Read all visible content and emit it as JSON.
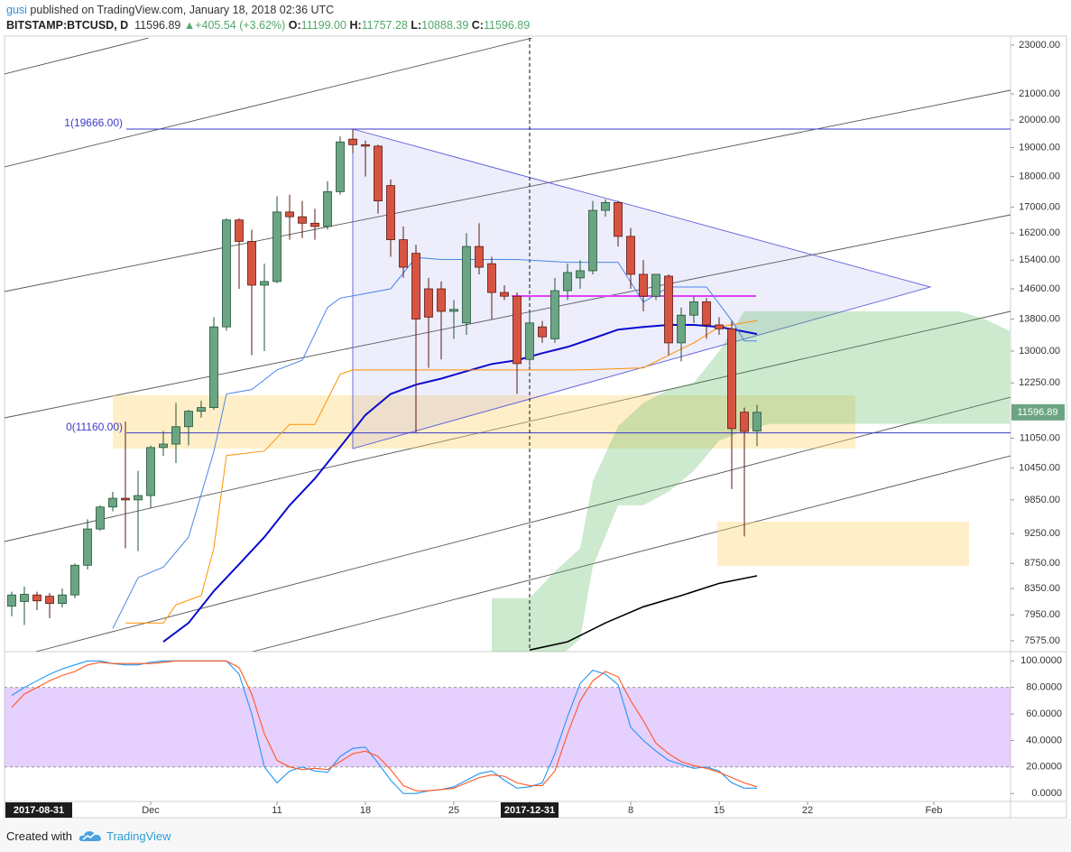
{
  "header": {
    "author": "gusi",
    "published": "published on TradingView.com, January 18, 2018 02:36 UTC"
  },
  "chart_data": [
    {
      "type": "candlestick",
      "symbol": "BITSTAMP:BTCUSD, D",
      "legend": {
        "last": "11596.89",
        "change": "+405.54 (+3.62%)",
        "change_color": "#53a86b",
        "o_label": "O:",
        "o": "11199.00",
        "h_label": "H:",
        "h": "11757.28",
        "l_label": "L:",
        "l": "10888.39",
        "c_label": "C:",
        "c": "11596.89"
      },
      "x": [
        "2017-11-20",
        "2017-11-21",
        "2017-11-22",
        "2017-11-23",
        "2017-11-24",
        "2017-11-25",
        "2017-11-26",
        "2017-11-27",
        "2017-11-28",
        "2017-11-29",
        "2017-11-30",
        "2017-12-01",
        "2017-12-02",
        "2017-12-03",
        "2017-12-04",
        "2017-12-05",
        "2017-12-06",
        "2017-12-07",
        "2017-12-08",
        "2017-12-09",
        "2017-12-10",
        "2017-12-11",
        "2017-12-12",
        "2017-12-13",
        "2017-12-14",
        "2017-12-15",
        "2017-12-16",
        "2017-12-17",
        "2017-12-18",
        "2017-12-19",
        "2017-12-20",
        "2017-12-21",
        "2017-12-22",
        "2017-12-23",
        "2017-12-24",
        "2017-12-25",
        "2017-12-26",
        "2017-12-27",
        "2017-12-28",
        "2017-12-29",
        "2017-12-30",
        "2017-12-31",
        "2018-01-01",
        "2018-01-02",
        "2018-01-03",
        "2018-01-04",
        "2018-01-05",
        "2018-01-06",
        "2018-01-07",
        "2018-01-08",
        "2018-01-09",
        "2018-01-10",
        "2018-01-11",
        "2018-01-12",
        "2018-01-13",
        "2018-01-14",
        "2018-01-15",
        "2018-01-16",
        "2018-01-17",
        "2018-01-18"
      ],
      "open": [
        8080,
        8150,
        8250,
        8230,
        8120,
        8250,
        8720,
        9330,
        9720,
        9880,
        9850,
        9930,
        10860,
        10930,
        11290,
        11620,
        11700,
        13600,
        16600,
        15950,
        14700,
        14800,
        16850,
        16700,
        16500,
        16400,
        17500,
        19300,
        19100,
        19050,
        17700,
        16000,
        15600,
        14600,
        14600,
        14000,
        13700,
        15800,
        15300,
        14500,
        14400,
        12800,
        13600,
        13300,
        14550,
        14900,
        15100,
        16900,
        17150,
        16100,
        15000,
        14400,
        14950,
        13200,
        13900,
        14250,
        13650,
        13550,
        11600,
        11199
      ],
      "high": [
        8300,
        8380,
        8300,
        8280,
        8350,
        8750,
        9500,
        9750,
        10000,
        11400,
        10400,
        10900,
        11200,
        11800,
        11650,
        11850,
        13850,
        16650,
        16650,
        16300,
        15300,
        17350,
        17400,
        17200,
        16950,
        17850,
        19400,
        19666,
        19250,
        19100,
        17900,
        16400,
        15850,
        14900,
        14800,
        14300,
        16200,
        16500,
        15500,
        14700,
        14500,
        14000,
        13750,
        14900,
        15300,
        15400,
        17200,
        17250,
        17200,
        16350,
        15400,
        15000,
        15000,
        14100,
        14400,
        14350,
        13850,
        13750,
        11700,
        11757.28
      ],
      "low": [
        7930,
        7800,
        8020,
        7900,
        8060,
        8200,
        8650,
        9300,
        9640,
        9000,
        8950,
        9700,
        10690,
        10550,
        10900,
        11480,
        11650,
        13500,
        14600,
        12900,
        13000,
        14750,
        16000,
        16050,
        16000,
        16300,
        17400,
        18800,
        18000,
        16800,
        15500,
        14900,
        11160,
        12600,
        12800,
        13300,
        13400,
        15000,
        13800,
        14300,
        12000,
        12650,
        13200,
        13200,
        14300,
        14600,
        15000,
        16700,
        15800,
        14600,
        14000,
        14300,
        12900,
        12750,
        13700,
        13300,
        13400,
        10050,
        9200,
        10888.39
      ],
      "close": [
        8250,
        8260,
        8160,
        8120,
        8250,
        8720,
        9330,
        9720,
        9880,
        9850,
        9930,
        10860,
        10930,
        11290,
        11620,
        11700,
        13600,
        16600,
        15950,
        14700,
        14800,
        16850,
        16700,
        16500,
        16400,
        17500,
        19200,
        19100,
        19050,
        17200,
        16000,
        15200,
        13800,
        13850,
        14000,
        14050,
        15800,
        15200,
        14500,
        14400,
        12700,
        13700,
        13350,
        14550,
        15050,
        15100,
        16900,
        17150,
        16100,
        15000,
        14400,
        15000,
        13200,
        13900,
        14250,
        13650,
        13550,
        11250,
        11190,
        11596.89
      ],
      "up_color": "#6ba583",
      "up_border": "#225437",
      "down_color": "#d75442",
      "down_border": "#5b1a13",
      "xlim": [
        "2017-11-19",
        "2018-02-07"
      ],
      "xticks": [
        {
          "value": "2017-12-01",
          "label": "Dec"
        },
        {
          "value": "2017-12-11",
          "label": "11"
        },
        {
          "value": "2017-12-18",
          "label": "18"
        },
        {
          "value": "2017-12-25",
          "label": "25"
        },
        {
          "value": "2017-12-31",
          "label": "2017-12-31"
        },
        {
          "value": "2018-01-08",
          "label": "8"
        },
        {
          "value": "2018-01-15",
          "label": "15"
        },
        {
          "value": "2018-01-22",
          "label": "22"
        },
        {
          "value": "2018-02-01",
          "label": "Feb"
        }
      ],
      "cursor_date": "2017-12-31",
      "range_start_label": "2017-08-31",
      "ylim": [
        7435,
        23310
      ],
      "log_scale": true,
      "yticks": [
        {
          "value": 23000,
          "label": "23000.00"
        },
        {
          "value": 21000,
          "label": "21000.00"
        },
        {
          "value": 20000,
          "label": "20000.00"
        },
        {
          "value": 19000,
          "label": "19000.00"
        },
        {
          "value": 18000,
          "label": "18000.00"
        },
        {
          "value": 17000,
          "label": "17000.00"
        },
        {
          "value": 16200,
          "label": "16200.00"
        },
        {
          "value": 15400,
          "label": "15400.00"
        },
        {
          "value": 14600,
          "label": "14600.00"
        },
        {
          "value": 13800,
          "label": "13800.00"
        },
        {
          "value": 13000,
          "label": "13000.00"
        },
        {
          "value": 12250,
          "label": "12250.00"
        },
        {
          "value": 11050,
          "label": "11050.00"
        },
        {
          "value": 10450,
          "label": "10450.00"
        },
        {
          "value": 9850,
          "label": "9850.00"
        },
        {
          "value": 9250,
          "label": "9250.00"
        },
        {
          "value": 8750,
          "label": "8750.00"
        },
        {
          "value": 8350,
          "label": "8350.00"
        },
        {
          "value": 7950,
          "label": "7950.00"
        },
        {
          "value": 7575,
          "label": "7575.00"
        }
      ],
      "fib_levels": [
        {
          "value": 19666,
          "label": "1(19666.00)"
        },
        {
          "value": 11160,
          "label": "0(11160.00)"
        }
      ],
      "fib_color": "#3a3acc",
      "lines": [
        {
          "color": "#0b0bcf",
          "width": 2,
          "x": [
            "2017-12-02",
            "2017-12-04",
            "2017-12-06",
            "2017-12-08",
            "2017-12-10",
            "2017-12-12",
            "2017-12-14",
            "2017-12-16",
            "2017-12-18",
            "2017-12-20",
            "2017-12-22",
            "2017-12-24",
            "2017-12-26",
            "2017-12-28",
            "2017-12-30",
            "2018-01-01",
            "2018-01-03",
            "2018-01-05",
            "2018-01-07",
            "2018-01-09",
            "2018-01-11",
            "2018-01-13",
            "2018-01-15",
            "2018-01-17",
            "2018-01-18"
          ],
          "values": [
            7560,
            7830,
            8310,
            8735,
            9190,
            9750,
            10250,
            10870,
            11540,
            12000,
            12210,
            12350,
            12520,
            12690,
            12780,
            12950,
            13100,
            13310,
            13530,
            13600,
            13650,
            13650,
            13600,
            13480,
            13420
          ]
        },
        {
          "color": "#ff9100",
          "width": 1,
          "x": [
            "2017-11-29",
            "2017-12-02",
            "2017-12-03",
            "2017-12-05",
            "2017-12-06",
            "2017-12-07",
            "2017-12-10",
            "2017-12-12",
            "2017-12-14",
            "2017-12-16",
            "2017-12-17",
            "2017-12-30",
            "2018-01-04",
            "2018-01-09",
            "2018-01-11",
            "2018-01-13",
            "2018-01-15",
            "2018-01-18"
          ],
          "values": [
            7830,
            7830,
            8100,
            8240,
            9000,
            10700,
            10790,
            11340,
            11340,
            12450,
            12550,
            12550,
            12550,
            12600,
            12900,
            13200,
            13600,
            13760
          ]
        },
        {
          "color": "#4a86e8",
          "width": 1,
          "x": [
            "2017-11-28",
            "2017-11-30",
            "2017-12-02",
            "2017-12-04",
            "2017-12-06",
            "2017-12-07",
            "2017-12-09",
            "2017-12-11",
            "2017-12-13",
            "2017-12-15",
            "2017-12-16",
            "2017-12-18",
            "2017-12-20",
            "2017-12-22",
            "2017-12-24",
            "2017-12-30",
            "2018-01-03",
            "2018-01-07",
            "2018-01-09",
            "2018-01-11",
            "2018-01-14",
            "2018-01-16",
            "2018-01-17",
            "2018-01-18"
          ],
          "values": [
            7750,
            8520,
            8690,
            9190,
            10780,
            12000,
            12100,
            12550,
            12780,
            14100,
            14350,
            14470,
            14600,
            15480,
            15420,
            15420,
            15340,
            15340,
            14240,
            14650,
            14650,
            13760,
            13250,
            13250
          ]
        },
        {
          "color": "#000000",
          "width": 1.6,
          "x": [
            "2017-12-31",
            "2018-01-03",
            "2018-01-06",
            "2018-01-09",
            "2018-01-12",
            "2018-01-15",
            "2018-01-18"
          ],
          "values": [
            7445,
            7560,
            7830,
            8070,
            8240,
            8430,
            8550
          ]
        }
      ],
      "cloud": {
        "color": "rgba(76,175,80,0.28)",
        "x": [
          "2017-12-28",
          "2017-12-31",
          "2018-01-02",
          "2018-01-04",
          "2018-01-05",
          "2018-01-07",
          "2018-01-09",
          "2018-01-11",
          "2018-01-13",
          "2018-01-15",
          "2018-01-17",
          "2018-01-19",
          "2018-01-24",
          "2018-01-29",
          "2018-02-03",
          "2018-02-05",
          "2018-02-07"
        ],
        "upper": [
          8200,
          8200,
          8620,
          9000,
          10200,
          11300,
          11800,
          12100,
          12250,
          13000,
          14000,
          14000,
          14000,
          14000,
          14000,
          13800,
          13500
        ],
        "lower": [
          7300,
          7300,
          7300,
          7600,
          8700,
          9750,
          9750,
          10000,
          10400,
          11000,
          11200,
          11350,
          11350,
          11350,
          11350,
          11350,
          11350
        ]
      }
    },
    {
      "type": "line",
      "x": [
        "2017-11-20",
        "2017-11-21",
        "2017-11-22",
        "2017-11-23",
        "2017-11-24",
        "2017-11-25",
        "2017-11-26",
        "2017-11-27",
        "2017-11-28",
        "2017-11-29",
        "2017-11-30",
        "2017-12-01",
        "2017-12-02",
        "2017-12-03",
        "2017-12-04",
        "2017-12-05",
        "2017-12-06",
        "2017-12-07",
        "2017-12-08",
        "2017-12-09",
        "2017-12-10",
        "2017-12-11",
        "2017-12-12",
        "2017-12-13",
        "2017-12-14",
        "2017-12-15",
        "2017-12-16",
        "2017-12-17",
        "2017-12-18",
        "2017-12-19",
        "2017-12-20",
        "2017-12-21",
        "2017-12-22",
        "2017-12-23",
        "2017-12-24",
        "2017-12-25",
        "2017-12-26",
        "2017-12-27",
        "2017-12-28",
        "2017-12-29",
        "2017-12-30",
        "2017-12-31",
        "2018-01-01",
        "2018-01-02",
        "2018-01-03",
        "2018-01-04",
        "2018-01-05",
        "2018-01-06",
        "2018-01-07",
        "2018-01-08",
        "2018-01-09",
        "2018-01-10",
        "2018-01-11",
        "2018-01-12",
        "2018-01-13",
        "2018-01-14",
        "2018-01-15",
        "2018-01-16",
        "2018-01-17",
        "2018-01-18"
      ],
      "series": [
        {
          "color": "#2196f3",
          "values": [
            74,
            80,
            85,
            90,
            94,
            97,
            100,
            100,
            98,
            97,
            97,
            99,
            100,
            100,
            100,
            100,
            100,
            100,
            90,
            60,
            20,
            8,
            17,
            20,
            17,
            16,
            28,
            34,
            35,
            23,
            10,
            0,
            0,
            2,
            3,
            5,
            10,
            15,
            17,
            10,
            4,
            5,
            8,
            30,
            58,
            83,
            93,
            90,
            82,
            50,
            40,
            32,
            25,
            22,
            19,
            20,
            17,
            8,
            4,
            4
          ]
        },
        {
          "color": "#ff5722",
          "values": [
            65,
            75,
            80,
            85,
            89,
            92,
            97,
            99,
            98,
            98,
            98,
            98,
            99,
            100,
            100,
            100,
            100,
            100,
            95,
            75,
            45,
            25,
            20,
            18,
            19,
            18,
            24,
            30,
            32,
            28,
            18,
            6,
            2,
            2,
            3,
            4,
            8,
            12,
            14,
            13,
            8,
            6,
            6,
            17,
            45,
            70,
            85,
            92,
            88,
            70,
            55,
            38,
            30,
            24,
            21,
            19,
            16,
            12,
            8,
            5
          ]
        }
      ],
      "ylim": [
        -6,
        107
      ],
      "yticks": [
        {
          "value": 100,
          "label": "100.0000"
        },
        {
          "value": 80,
          "label": "80.0000"
        },
        {
          "value": 60,
          "label": "60.0000"
        },
        {
          "value": 40,
          "label": "40.0000"
        },
        {
          "value": 20,
          "label": "20.0000"
        },
        {
          "value": 0,
          "label": "0.0000"
        }
      ],
      "band": [
        20,
        80
      ],
      "band_color": "rgba(200,150,250,0.45)"
    }
  ],
  "footer": {
    "created_with": "Created with",
    "brand": "TradingView"
  }
}
